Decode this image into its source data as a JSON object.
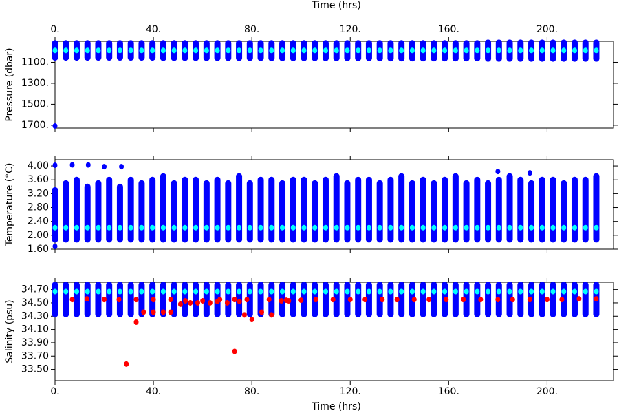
{
  "chart_data": [
    {
      "type": "scatter",
      "ylabel": "Pressure (dbar)",
      "xlabel": "Time (hrs)",
      "xlabel_side": "top",
      "yinvert": true,
      "xlim": [
        0,
        227
      ],
      "xticks": [
        {
          "value": 0,
          "label": "0."
        },
        {
          "value": 40,
          "label": "40."
        },
        {
          "value": 80,
          "label": "80."
        },
        {
          "value": 120,
          "label": "120."
        },
        {
          "value": 160,
          "label": "160."
        },
        {
          "value": 200,
          "label": "200."
        }
      ],
      "ylim": [
        900,
        1727
      ],
      "yticks": [
        {
          "value": 1100,
          "label": "1100."
        },
        {
          "value": 1300,
          "label": "1300."
        },
        {
          "value": 1500,
          "label": "1500."
        },
        {
          "value": 1700,
          "label": "1700."
        }
      ],
      "x": [
        0,
        4.4,
        8.8,
        13.2,
        17.6,
        22,
        26.4,
        30.8,
        35.2,
        39.6,
        44,
        48.4,
        52.8,
        57.2,
        61.6,
        66,
        70.4,
        74.8,
        79.2,
        83.6,
        88,
        92.4,
        96.8,
        101.2,
        105.6,
        110,
        114.4,
        118.8,
        123.2,
        127.6,
        132,
        136.4,
        140.8,
        145.2,
        149.6,
        154,
        158.4,
        162.8,
        167.2,
        171.6,
        176,
        180.4,
        184.8,
        189.2,
        193.6,
        198,
        202.4,
        206.8,
        211.2,
        215.6,
        220
      ],
      "series": [
        {
          "color": "#0000ff",
          "low": [
            918,
            918,
            918,
            918,
            918,
            918,
            918,
            918,
            918,
            918,
            918,
            918,
            918,
            918,
            918,
            918,
            918,
            918,
            918,
            918,
            918,
            918,
            918,
            918,
            918,
            918,
            918,
            918,
            918,
            918,
            918,
            918,
            918,
            918,
            918,
            918,
            918,
            918,
            918,
            918,
            912,
            912,
            912,
            912,
            912,
            912,
            912,
            912,
            912,
            912,
            912
          ],
          "high": [
            1055,
            1055,
            1055,
            1055,
            1055,
            1055,
            1055,
            1055,
            1055,
            1055,
            1058,
            1058,
            1058,
            1058,
            1058,
            1058,
            1058,
            1058,
            1058,
            1058,
            1060,
            1060,
            1060,
            1060,
            1060,
            1060,
            1060,
            1060,
            1060,
            1060,
            1062,
            1062,
            1062,
            1062,
            1062,
            1062,
            1062,
            1062,
            1062,
            1062,
            1065,
            1065,
            1065,
            1065,
            1065,
            1065,
            1065,
            1065,
            1065,
            1065,
            1065
          ]
        },
        {
          "color": "#00ffff",
          "values": [
            987,
            987,
            987,
            987,
            987,
            987,
            987,
            987,
            987,
            987,
            987,
            987,
            987,
            987,
            987,
            987,
            987,
            987,
            987,
            987,
            987,
            987,
            987,
            987,
            987,
            987,
            987,
            987,
            987,
            987,
            987,
            987,
            987,
            987,
            987,
            987,
            987,
            987,
            987,
            987,
            987,
            987,
            987,
            987,
            987,
            987,
            987,
            987,
            987,
            987,
            987
          ]
        },
        {
          "color": "#0000ff",
          "x": [
            0
          ],
          "values": [
            1707
          ]
        }
      ]
    },
    {
      "type": "scatter",
      "ylabel": "Temperature (°C)",
      "yinvert": false,
      "xlim": [
        0,
        227
      ],
      "xticks": [
        0,
        40,
        80,
        120,
        160,
        200
      ],
      "ylim": [
        1.6,
        4.18
      ],
      "yticks": [
        {
          "value": 1.6,
          "label": "1.60"
        },
        {
          "value": 2.0,
          "label": "2.00"
        },
        {
          "value": 2.4,
          "label": "2.40"
        },
        {
          "value": 2.8,
          "label": "2.80"
        },
        {
          "value": 3.2,
          "label": "3.20"
        },
        {
          "value": 3.6,
          "label": "3.60"
        },
        {
          "value": 4.0,
          "label": "4.00"
        }
      ],
      "x": [
        0,
        4.4,
        8.8,
        13.2,
        17.6,
        22,
        26.4,
        30.8,
        35.2,
        39.6,
        44,
        48.4,
        52.8,
        57.2,
        61.6,
        66,
        70.4,
        74.8,
        79.2,
        83.6,
        88,
        92.4,
        96.8,
        101.2,
        105.6,
        110,
        114.4,
        118.8,
        123.2,
        127.6,
        132,
        136.4,
        140.8,
        145.2,
        149.6,
        154,
        158.4,
        162.8,
        167.2,
        171.6,
        176,
        180.4,
        184.8,
        189.2,
        193.6,
        198,
        202.4,
        206.8,
        211.2,
        215.6,
        220
      ],
      "series": [
        {
          "color": "#0000ff",
          "low": [
            1.88,
            1.88,
            1.88,
            1.88,
            1.88,
            1.88,
            1.88,
            1.88,
            1.88,
            1.88,
            1.88,
            1.88,
            1.88,
            1.88,
            1.88,
            1.88,
            1.88,
            1.88,
            1.88,
            1.88,
            1.88,
            1.88,
            1.88,
            1.88,
            1.88,
            1.88,
            1.88,
            1.88,
            1.88,
            1.88,
            1.88,
            1.88,
            1.88,
            1.88,
            1.88,
            1.88,
            1.88,
            1.88,
            1.88,
            1.88,
            1.88,
            1.88,
            1.88,
            1.88,
            1.88,
            1.88,
            1.88,
            1.88,
            1.88,
            1.88,
            1.88
          ],
          "high": [
            3.3,
            3.5,
            3.6,
            3.4,
            3.5,
            3.6,
            3.4,
            3.6,
            3.5,
            3.6,
            3.7,
            3.5,
            3.6,
            3.6,
            3.5,
            3.6,
            3.5,
            3.7,
            3.5,
            3.6,
            3.6,
            3.5,
            3.6,
            3.6,
            3.5,
            3.6,
            3.7,
            3.5,
            3.6,
            3.6,
            3.5,
            3.6,
            3.7,
            3.5,
            3.6,
            3.5,
            3.6,
            3.7,
            3.5,
            3.6,
            3.5,
            3.6,
            3.7,
            3.6,
            3.5,
            3.6,
            3.6,
            3.5,
            3.6,
            3.6,
            3.7
          ]
        },
        {
          "color": "#00ffff",
          "values": [
            2.22,
            2.22,
            2.22,
            2.22,
            2.22,
            2.22,
            2.22,
            2.22,
            2.22,
            2.22,
            2.22,
            2.22,
            2.22,
            2.22,
            2.22,
            2.22,
            2.22,
            2.22,
            2.22,
            2.22,
            2.22,
            2.22,
            2.22,
            2.22,
            2.22,
            2.22,
            2.22,
            2.22,
            2.22,
            2.22,
            2.22,
            2.22,
            2.22,
            2.22,
            2.22,
            2.22,
            2.22,
            2.22,
            2.22,
            2.22,
            2.22,
            2.22,
            2.22,
            2.22,
            2.22,
            2.22,
            2.22,
            2.22,
            2.22,
            2.22,
            2.22
          ]
        },
        {
          "color": "#0000ff",
          "x": [
            0,
            7,
            13.5,
            20,
            27,
            0,
            180,
            193
          ],
          "values": [
            4.02,
            4.03,
            4.03,
            3.98,
            3.98,
            1.68,
            3.84,
            3.8
          ]
        }
      ]
    },
    {
      "type": "scatter",
      "ylabel": "Salinity (psu)",
      "xlabel": "Time (hrs)",
      "xlabel_side": "bottom",
      "yinvert": false,
      "xlim": [
        0,
        227
      ],
      "xticks": [
        {
          "value": 0,
          "label": "0."
        },
        {
          "value": 40,
          "label": "40."
        },
        {
          "value": 80,
          "label": "80."
        },
        {
          "value": 120,
          "label": "120."
        },
        {
          "value": 160,
          "label": "160."
        },
        {
          "value": 200,
          "label": "200."
        }
      ],
      "ylim": [
        33.33,
        34.81
      ],
      "yticks": [
        {
          "value": 33.5,
          "label": "33.50"
        },
        {
          "value": 33.7,
          "label": "33.70"
        },
        {
          "value": 33.9,
          "label": "33.90"
        },
        {
          "value": 34.1,
          "label": "34.10"
        },
        {
          "value": 34.3,
          "label": "34.30"
        },
        {
          "value": 34.5,
          "label": "34.50"
        },
        {
          "value": 34.7,
          "label": "34.70"
        }
      ],
      "x": [
        0,
        4.4,
        8.8,
        13.2,
        17.6,
        22,
        26.4,
        30.8,
        35.2,
        39.6,
        44,
        48.4,
        52.8,
        57.2,
        61.6,
        66,
        70.4,
        74.8,
        79.2,
        83.6,
        88,
        92.4,
        96.8,
        101.2,
        105.6,
        110,
        114.4,
        118.8,
        123.2,
        127.6,
        132,
        136.4,
        140.8,
        145.2,
        149.6,
        154,
        158.4,
        162.8,
        167.2,
        171.6,
        176,
        180.4,
        184.8,
        189.2,
        193.6,
        198,
        202.4,
        206.8,
        211.2,
        215.6,
        220
      ],
      "series": [
        {
          "color": "#0000ff",
          "low": [
            34.33,
            34.33,
            34.33,
            34.33,
            34.33,
            34.33,
            34.33,
            34.33,
            34.33,
            34.33,
            34.33,
            34.33,
            34.33,
            34.33,
            34.33,
            34.33,
            34.33,
            34.33,
            34.33,
            34.33,
            34.33,
            34.33,
            34.33,
            34.33,
            34.33,
            34.33,
            34.33,
            34.33,
            34.33,
            34.33,
            34.33,
            34.33,
            34.33,
            34.33,
            34.33,
            34.33,
            34.33,
            34.33,
            34.33,
            34.33,
            34.33,
            34.33,
            34.33,
            34.33,
            34.33,
            34.33,
            34.33,
            34.33,
            34.33,
            34.33,
            34.33
          ],
          "high": [
            34.77,
            34.77,
            34.77,
            34.77,
            34.77,
            34.77,
            34.77,
            34.77,
            34.77,
            34.77,
            34.77,
            34.77,
            34.77,
            34.77,
            34.77,
            34.77,
            34.77,
            34.77,
            34.77,
            34.77,
            34.77,
            34.77,
            34.77,
            34.77,
            34.77,
            34.77,
            34.77,
            34.77,
            34.77,
            34.77,
            34.77,
            34.77,
            34.77,
            34.77,
            34.77,
            34.77,
            34.77,
            34.77,
            34.77,
            34.77,
            34.77,
            34.77,
            34.77,
            34.77,
            34.77,
            34.77,
            34.77,
            34.77,
            34.77,
            34.77,
            34.77
          ]
        },
        {
          "color": "#00ffff",
          "values": [
            34.67,
            34.67,
            34.67,
            34.67,
            34.67,
            34.67,
            34.67,
            34.67,
            34.67,
            34.67,
            34.67,
            34.67,
            34.67,
            34.67,
            34.67,
            34.67,
            34.67,
            34.67,
            34.67,
            34.67,
            34.67,
            34.67,
            34.67,
            34.67,
            34.67,
            34.67,
            34.67,
            34.67,
            34.67,
            34.67,
            34.67,
            34.67,
            34.67,
            34.67,
            34.67,
            34.67,
            34.67,
            34.67,
            34.67,
            34.67,
            34.67,
            34.67,
            34.67,
            34.67,
            34.67,
            34.67,
            34.67,
            34.67,
            34.67,
            34.67,
            34.67
          ]
        },
        {
          "color": "#ff0000",
          "x": [
            7,
            13,
            20,
            26,
            29,
            33,
            33,
            36,
            40,
            40,
            44,
            47,
            47,
            51,
            53,
            55,
            58,
            60,
            63,
            66,
            67,
            70,
            73,
            73,
            75,
            77,
            78,
            80,
            84,
            87,
            88,
            92,
            94,
            95,
            100,
            106,
            113,
            120,
            126,
            133,
            139,
            146,
            152,
            159,
            166,
            173,
            180,
            186,
            193,
            200,
            206,
            213,
            220
          ],
          "values": [
            34.55,
            34.56,
            34.55,
            34.55,
            33.58,
            34.55,
            34.21,
            34.36,
            34.55,
            34.36,
            34.36,
            34.55,
            34.36,
            34.48,
            34.53,
            34.5,
            34.5,
            34.53,
            34.5,
            34.52,
            34.55,
            34.5,
            34.55,
            33.77,
            34.52,
            34.32,
            34.55,
            34.25,
            34.36,
            34.55,
            34.32,
            34.53,
            34.54,
            34.53,
            34.54,
            34.55,
            34.55,
            34.55,
            34.55,
            34.55,
            34.55,
            34.55,
            34.55,
            34.55,
            34.55,
            34.55,
            34.55,
            34.55,
            34.55,
            34.55,
            34.55,
            34.56,
            34.56
          ]
        }
      ]
    }
  ]
}
